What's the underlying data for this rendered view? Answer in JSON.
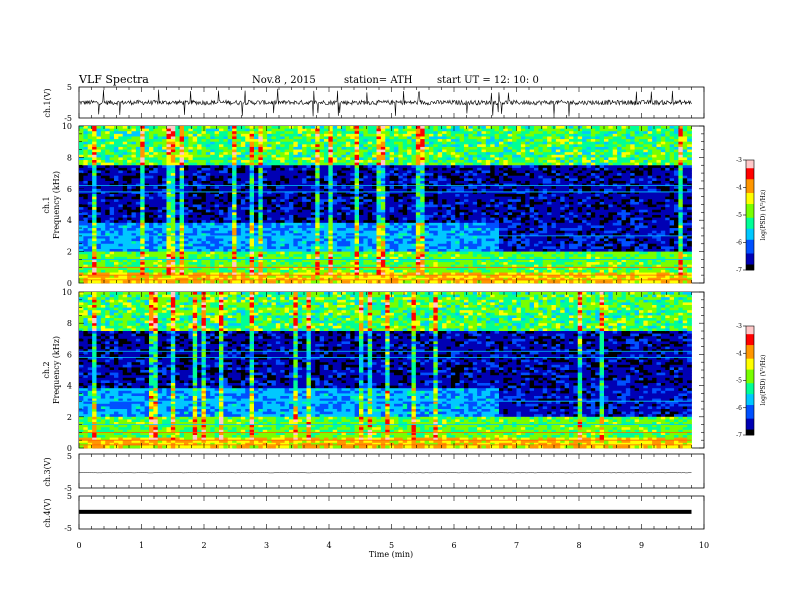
{
  "header": {
    "title": "VLF  Spectra",
    "date": "Nov.8   , 2015",
    "station": "station= ATH",
    "start": "start  UT  =    12: 10: 0"
  },
  "colors": {
    "spectrogram_background": "#000066",
    "colormap": [
      "#000000",
      "#0000b4",
      "#0050ff",
      "#00c8ff",
      "#00ff96",
      "#78ff00",
      "#ffff00",
      "#ff9600",
      "#ff0000",
      "#ffc8c8"
    ]
  },
  "chart_data": [
    {
      "type": "line",
      "name": "ch1-waveform",
      "ylabel": "ch.1(V)",
      "ylim": [
        -5,
        5
      ],
      "yticks": [
        "5",
        "-5"
      ],
      "xlim": [
        0,
        10
      ],
      "data_end_min": 9.8,
      "baseline_v": 0,
      "noise_amplitude_v": 1.5
    },
    {
      "type": "heatmap",
      "name": "ch1-spectrogram",
      "ylabel": "ch.1\nFrequency  (kHz)",
      "ylabel_line1": "ch.1",
      "ylabel_line2": "Frequency  (kHz)",
      "xlim": [
        0,
        10
      ],
      "ylim": [
        0,
        10
      ],
      "yticks": [
        "0",
        "2",
        "4",
        "6",
        "8",
        "10"
      ],
      "data_end_min": 9.8,
      "colorbar": {
        "label": "log(PSD) (V²/Hz)",
        "range": [
          -7,
          -3
        ],
        "ticks": [
          "-3",
          "-4",
          "-5",
          "-6",
          "-7"
        ]
      },
      "level_change_min": 6.7
    },
    {
      "type": "heatmap",
      "name": "ch2-spectrogram",
      "ylabel": "ch.2\nFrequency  (kHz)",
      "ylabel_line1": "ch.2",
      "ylabel_line2": "Frequency  (kHz)",
      "xlim": [
        0,
        10
      ],
      "ylim": [
        0,
        10
      ],
      "yticks": [
        "0",
        "2",
        "4",
        "6",
        "8",
        "10"
      ],
      "data_end_min": 9.8,
      "colorbar": {
        "label": "log(PSD) (V²/Hz)",
        "range": [
          -7,
          -3
        ],
        "ticks": [
          "-3",
          "-4",
          "-5",
          "-6",
          "-7"
        ]
      },
      "level_change_min": 6.7
    },
    {
      "type": "line",
      "name": "ch3-waveform",
      "ylabel": "ch.3(V)",
      "ylim": [
        -5,
        5
      ],
      "yticks": [
        "5",
        "-5"
      ],
      "xlim": [
        0,
        10
      ],
      "data_end_min": 9.8,
      "baseline_v": 0
    },
    {
      "type": "line",
      "name": "ch4-waveform",
      "ylabel": "ch.4(V)",
      "ylim": [
        -5,
        5
      ],
      "yticks": [
        "5",
        "-5"
      ],
      "xlim": [
        0,
        10
      ],
      "data_end_min": 9.8,
      "baseline_v": 0,
      "trace": "thick"
    }
  ],
  "xaxis": {
    "label": "Time  (min)",
    "ticks": [
      "0",
      "1",
      "2",
      "3",
      "4",
      "5",
      "6",
      "7",
      "8",
      "9",
      "10"
    ]
  }
}
